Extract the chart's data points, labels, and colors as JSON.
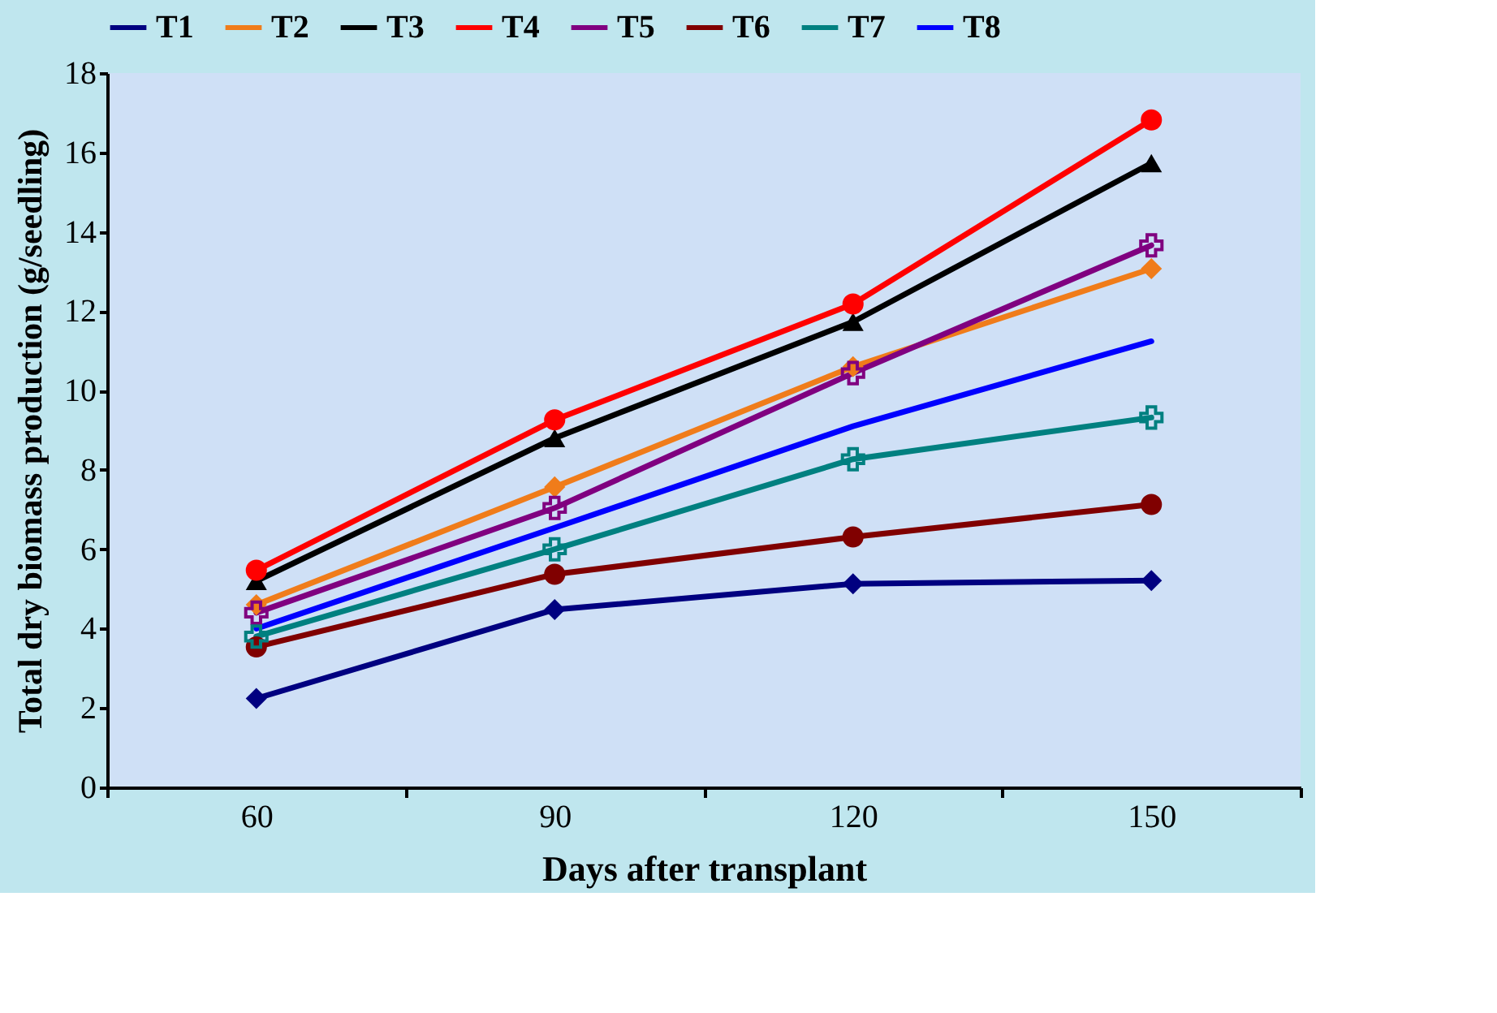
{
  "chart_data": {
    "type": "line",
    "xlabel": "Days after transplant",
    "ylabel": "Total dry  biomass production (g/seedling)",
    "categories": [
      "60",
      "90",
      "120",
      "150"
    ],
    "ylim": [
      0,
      18
    ],
    "yticks": [
      0,
      2,
      4,
      6,
      8,
      10,
      12,
      14,
      16,
      18
    ],
    "grid": false,
    "legend": "top",
    "line_style": "solid",
    "series": [
      {
        "name": "T1",
        "color": "#000080",
        "marker": "diamond",
        "values": [
          2.24,
          4.48,
          5.13,
          5.21
        ]
      },
      {
        "name": "T2",
        "color": "#f07c1a",
        "marker": "diamond",
        "values": [
          4.6,
          7.57,
          10.6,
          13.07
        ]
      },
      {
        "name": "T3",
        "color": "#000000",
        "marker": "triangle",
        "values": [
          5.2,
          8.8,
          11.73,
          15.73
        ]
      },
      {
        "name": "T4",
        "color": "#ff0000",
        "marker": "circle",
        "values": [
          5.47,
          9.26,
          12.18,
          16.82
        ]
      },
      {
        "name": "T5",
        "color": "#800080",
        "marker": "cross",
        "values": [
          4.4,
          7.04,
          10.44,
          13.66
        ]
      },
      {
        "name": "T6",
        "color": "#800000",
        "marker": "circle",
        "values": [
          3.54,
          5.37,
          6.31,
          7.13
        ]
      },
      {
        "name": "T7",
        "color": "#008080",
        "marker": "cross",
        "values": [
          3.8,
          6.0,
          8.27,
          9.32
        ]
      },
      {
        "name": "T8",
        "color": "#0000ff",
        "marker": "none",
        "values": [
          4.0,
          6.54,
          9.1,
          11.24
        ]
      }
    ]
  }
}
